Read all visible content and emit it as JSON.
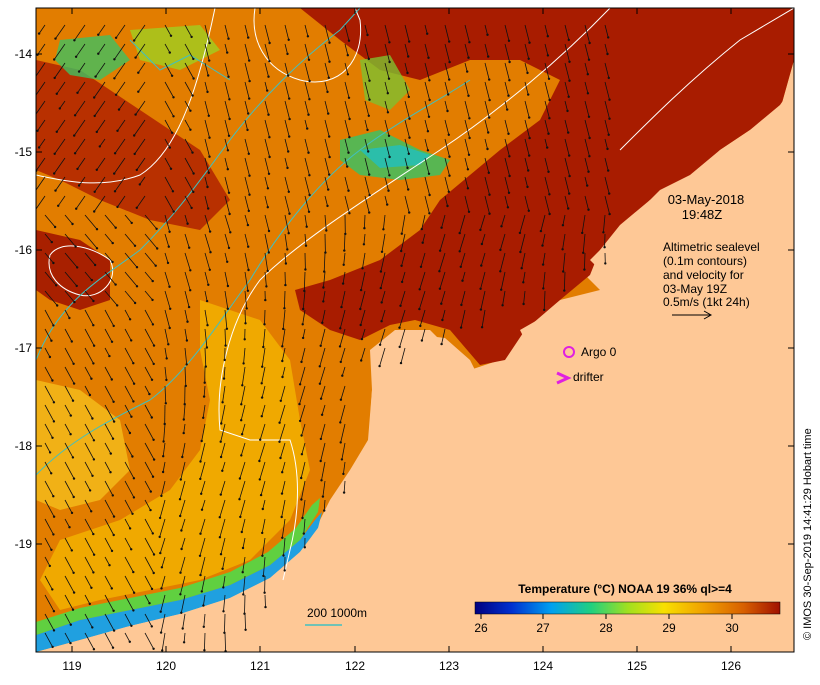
{
  "map": {
    "date": "03-May-2018",
    "time": "19:48Z",
    "altimetry_text": [
      "Altimetric sealevel",
      "(0.1m contours)",
      "and velocity for",
      "03-May 19Z"
    ],
    "velocity_scale": "0.5m/s (1kt 24h)",
    "lat_labels": [
      "-14",
      "-15",
      "-16",
      "-17",
      "-18",
      "-19"
    ],
    "lon_labels": [
      "119",
      "120",
      "121",
      "122",
      "123",
      "124",
      "125",
      "126"
    ],
    "legend_markers": [
      {
        "label": "Argo 0",
        "symbol": "circle",
        "color": "#e020e0"
      },
      {
        "label": "drifter",
        "symbol": "chevron",
        "color": "#e020e0"
      }
    ],
    "isobath_label": "200  1000m",
    "colorbar": {
      "title": "Temperature (°C) NOAA 19 36% ql>=4",
      "ticks": [
        "26",
        "27",
        "28",
        "29",
        "30"
      ]
    },
    "credit": "© IMOS 30-Sep-2019 14:41:29 Hobart time",
    "colors": {
      "land": "#fec896",
      "sst_warm": "#a81c00",
      "sst_mid": "#e07a00",
      "sst_cool": "#f2b000",
      "contour": "#ffffff",
      "isobath": "#40c0c0",
      "marker": "#e020e0"
    }
  }
}
